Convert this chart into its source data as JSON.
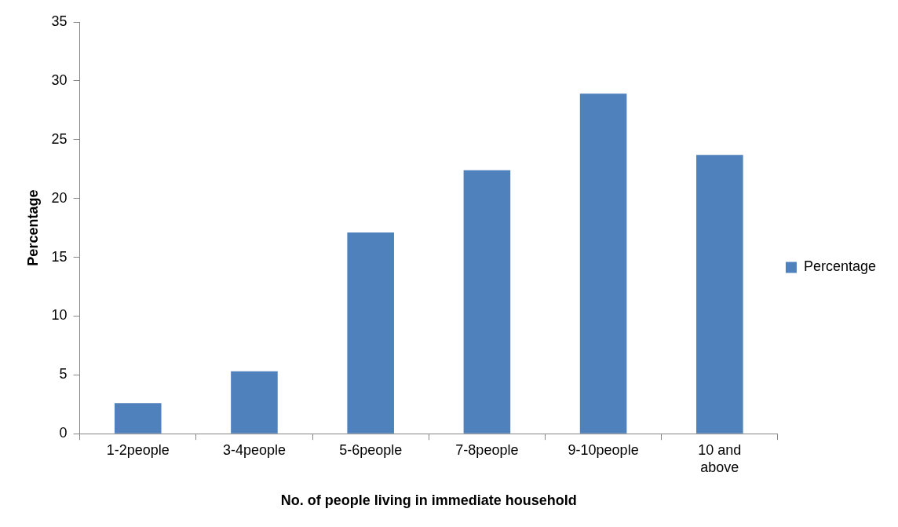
{
  "chart_data": {
    "type": "bar",
    "xlabel": "No. of people living in immediate household",
    "ylabel": "Percentage",
    "categories": [
      "1-2people",
      "3-4people",
      "5-6people",
      "7-8people",
      "9-10people",
      "10 and above"
    ],
    "series": [
      {
        "name": "Percentage",
        "color": "#4f81bd",
        "values": [
          2.6,
          5.3,
          17.1,
          22.4,
          28.9,
          23.7
        ]
      }
    ],
    "ylim": [
      0,
      35
    ],
    "yticks": [
      0,
      5,
      10,
      15,
      20,
      25,
      30,
      35
    ],
    "grid": false,
    "legend": "right"
  }
}
